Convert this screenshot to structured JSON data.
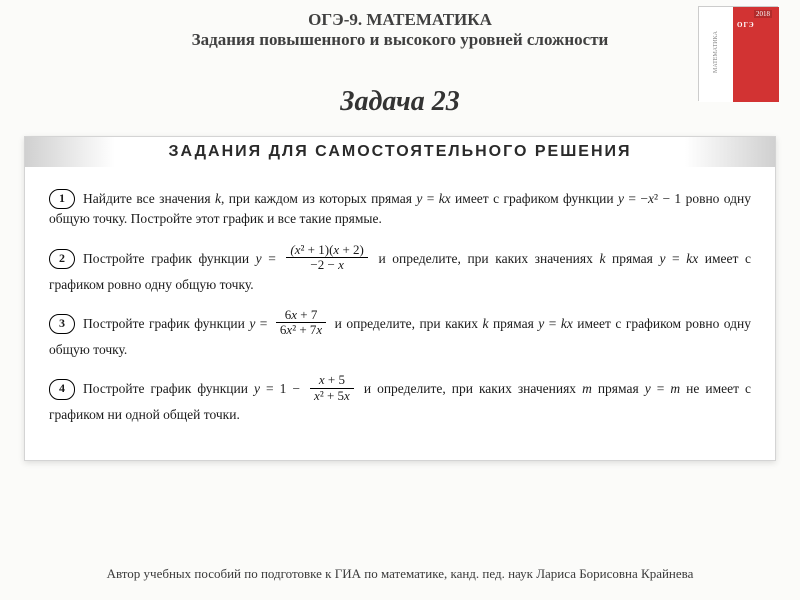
{
  "header": {
    "line1": "ОГЭ-9.  МАТЕМАТИКА",
    "line2": "Задания повышенного и высокого уровней сложности"
  },
  "book": {
    "year": "2018",
    "label": "ОГЭ",
    "side": "МАТЕМАТИКА"
  },
  "taskTitle": "Задача 23",
  "sectionTitle": "ЗАДАНИЯ ДЛЯ САМОСТОЯТЕЛЬНОГО РЕШЕНИЯ",
  "problems": {
    "p1": {
      "n": "1",
      "t1": "Найдите все значения ",
      "k": "k",
      "t2": ", при каждом из которых прямая ",
      "eq1a": "y",
      "eq1b": " = ",
      "eq1c": "kx",
      "t3": " имеет с графиком функции ",
      "eq2a": "y",
      "eq2b": " = −",
      "eq2c": "x",
      "t4": " − 1 ровно одну общую точку. Постройте этот график и все такие прямые."
    },
    "p2": {
      "n": "2",
      "t1": "Постройте график функции ",
      "ya": "y",
      "eq": " = ",
      "num": "(x² + 1)(x + 2)",
      "den": "−2 − x",
      "t2": " и определите, при каких значениях ",
      "k": "k",
      "t3": " прямая ",
      "e2a": "y",
      "e2b": " = ",
      "e2c": "kx",
      "t4": " имеет с графиком ровно одну общую точку."
    },
    "p3": {
      "n": "3",
      "t1": "Постройте график функции ",
      "ya": "y",
      "eq": " = ",
      "num": "6x + 7",
      "den": "6x² + 7x",
      "t2": " и определите, при каких ",
      "k": "k",
      "t3": " прямая ",
      "e2a": "y",
      "e2b": " = ",
      "e2c": "kx",
      "t4": " имеет с графиком ровно одну общую точку."
    },
    "p4": {
      "n": "4",
      "t1": "Постройте график функции ",
      "ya": "y",
      "eq": " = 1 − ",
      "num": "x + 5",
      "den": "x² + 5x",
      "t2": " и определите, при каких значениях ",
      "m": "m",
      "t3": " прямая ",
      "e2a": "y",
      "e2b": " = ",
      "e2c": "m",
      "t4": " не имеет с графиком ни одной общей точки."
    }
  },
  "footer": "Автор учебных пособий по подготовке к ГИА по математике,  канд. пед. наук  Лариса Борисовна Крайнева"
}
